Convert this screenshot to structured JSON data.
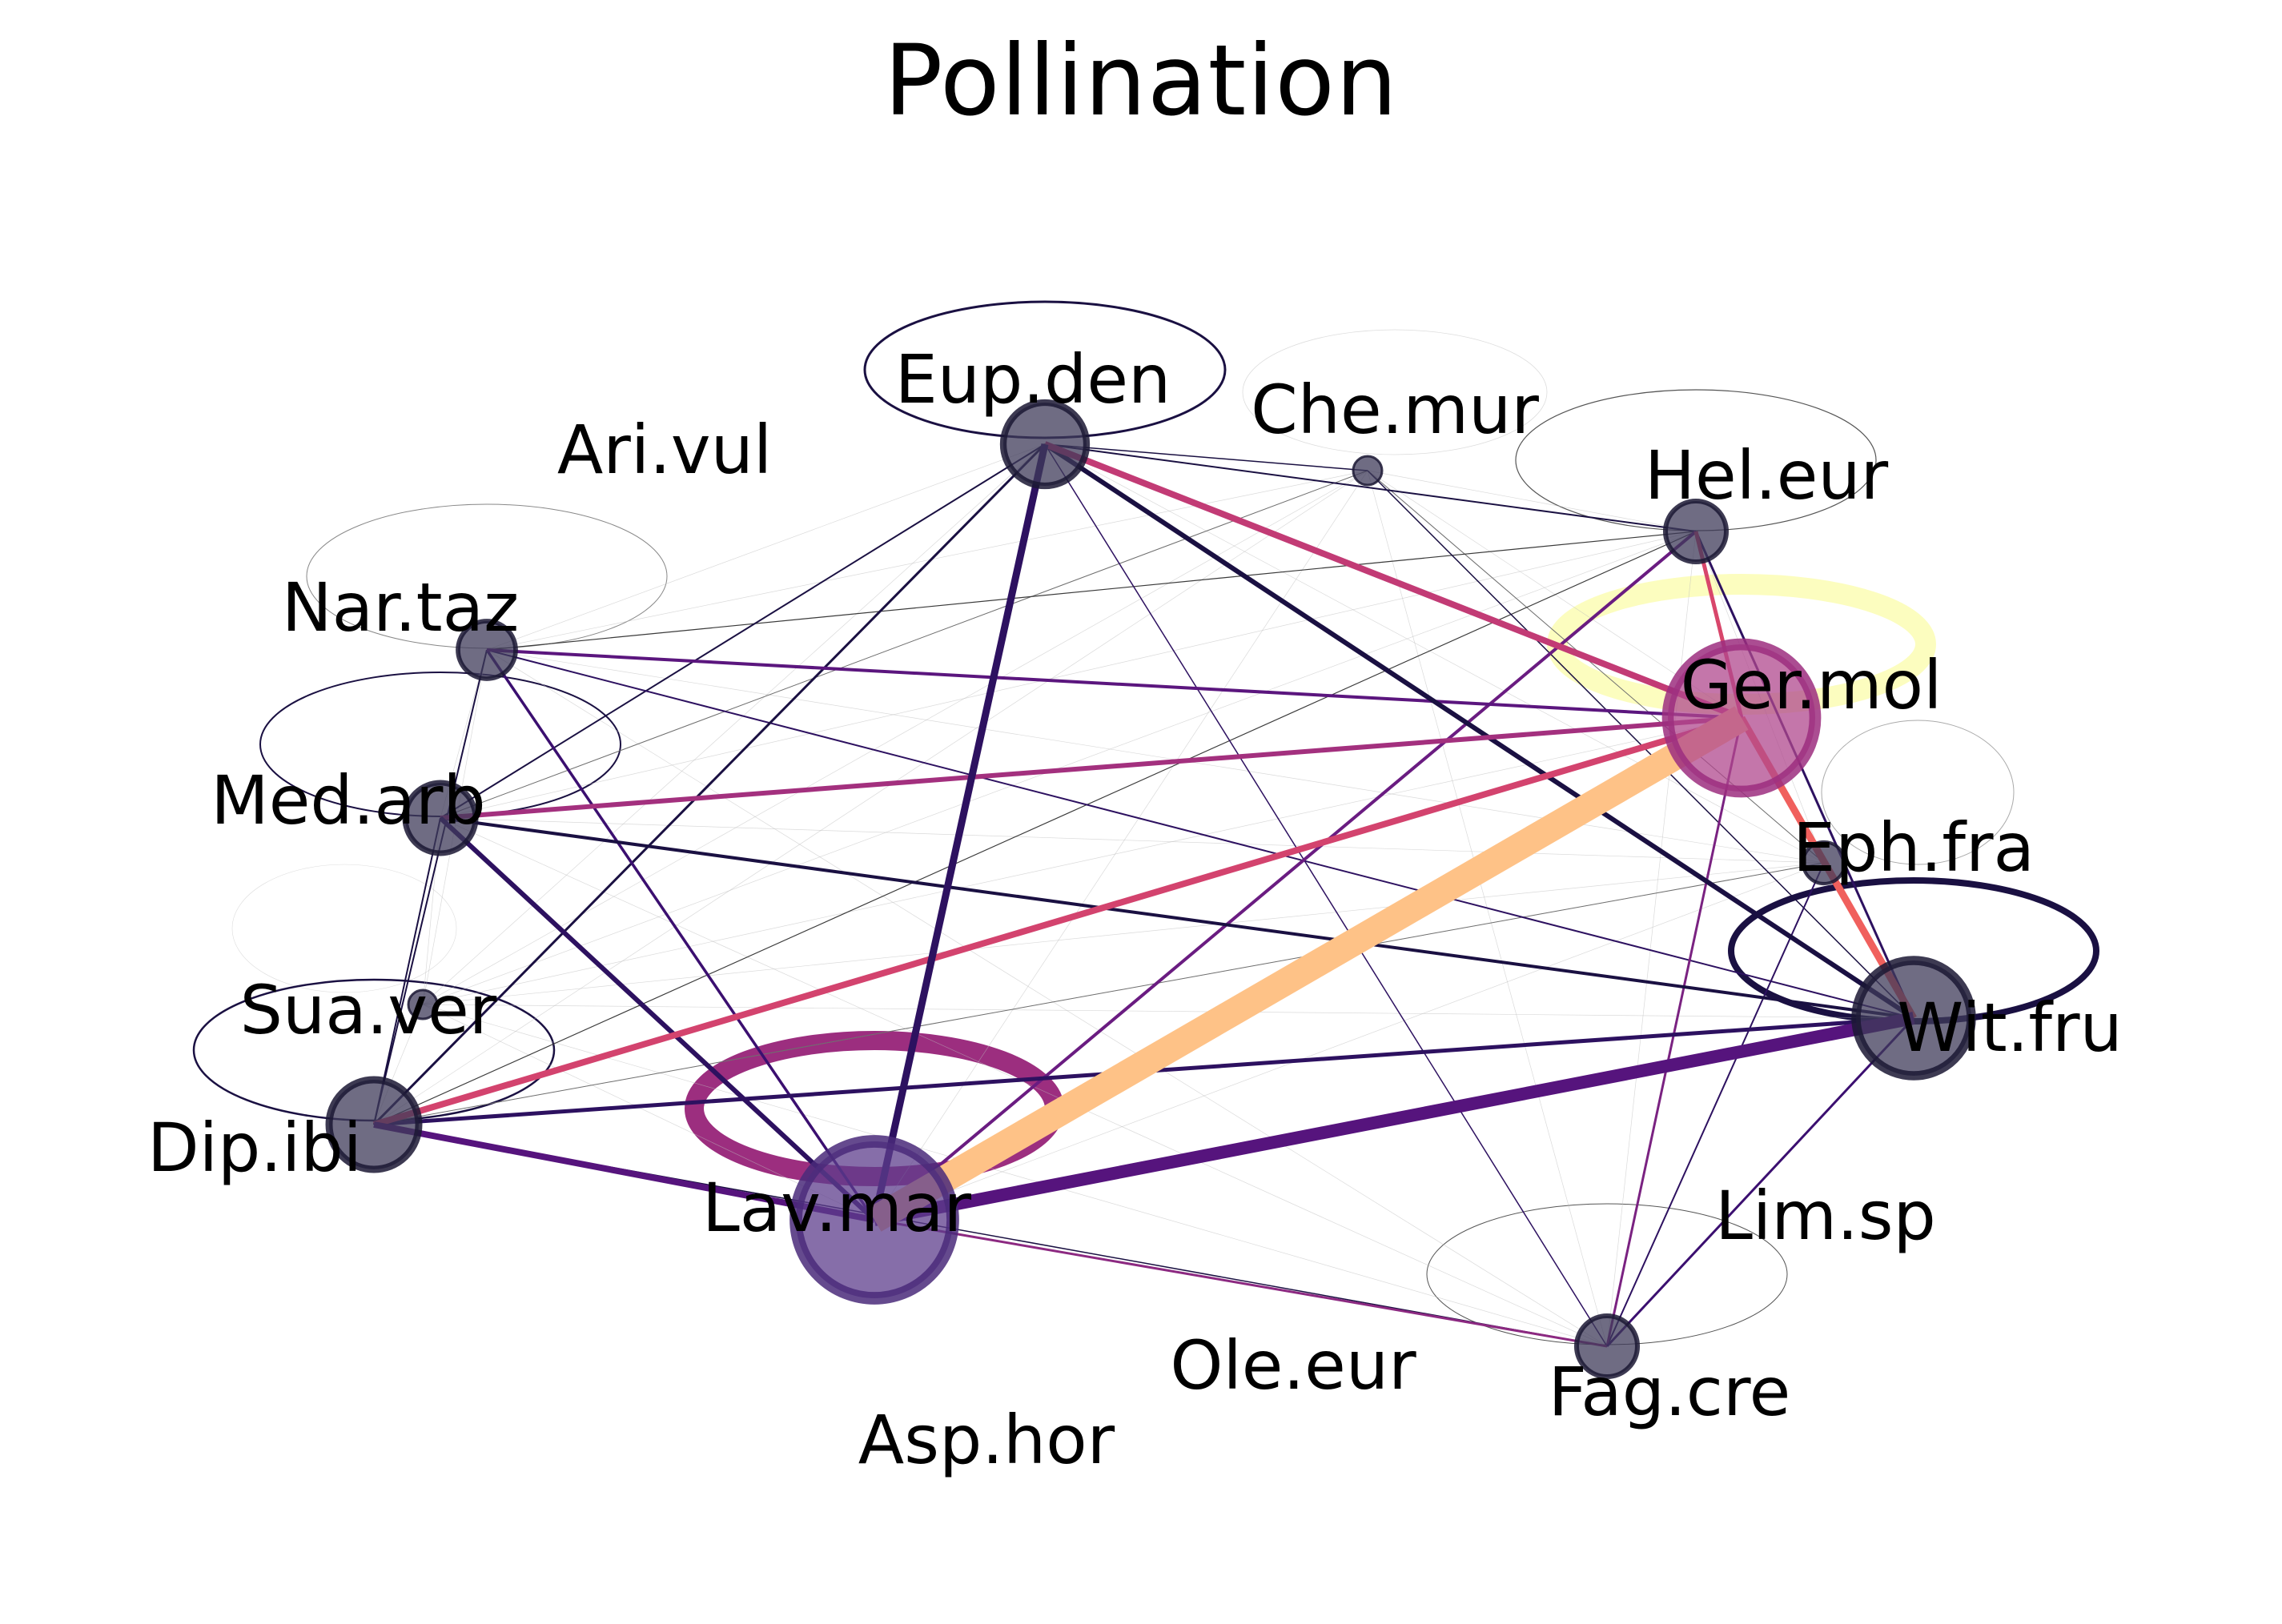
{
  "title": "Pollination",
  "colors": {
    "node_fill": "#3f3b5a",
    "node_stroke": "#1b1734",
    "ger_mol_fill": "#b0488e",
    "lav_mar_fill": "#5e3d8c"
  },
  "nodes": [
    {
      "id": "Eup.den",
      "label": "Eup.den"
    },
    {
      "id": "Che.mur",
      "label": "Che.mur"
    },
    {
      "id": "Hel.eur",
      "label": "Hel.eur"
    },
    {
      "id": "Ari.vul",
      "label": "Ari.vul"
    },
    {
      "id": "Nar.taz",
      "label": "Nar.taz"
    },
    {
      "id": "Ger.mol",
      "label": "Ger.mol"
    },
    {
      "id": "Med.arb",
      "label": "Med.arb"
    },
    {
      "id": "Eph.fra",
      "label": "Eph.fra"
    },
    {
      "id": "Sua.ver",
      "label": "Sua.ver"
    },
    {
      "id": "Wit.fru",
      "label": "Wit.fru"
    },
    {
      "id": "Dip.ibi",
      "label": "Dip.ibi"
    },
    {
      "id": "Lav.mar",
      "label": "Lav.mar"
    },
    {
      "id": "Lim.sp",
      "label": "Lim.sp"
    },
    {
      "id": "Fag.cre",
      "label": "Fag.cre"
    },
    {
      "id": "Ole.eur",
      "label": "Ole.eur"
    },
    {
      "id": "Asp.hor",
      "label": "Asp.hor"
    }
  ],
  "edges": [
    {
      "source": "Eup.den",
      "target": "Lav.mar",
      "color": "#2d1160"
    },
    {
      "source": "Eup.den",
      "target": "Ger.mol",
      "color": "#c23b75"
    },
    {
      "source": "Eup.den",
      "target": "Wit.fru",
      "color": "#1a1042"
    },
    {
      "source": "Eup.den",
      "target": "Dip.ibi",
      "color": "#1a1042"
    },
    {
      "source": "Eup.den",
      "target": "Med.arb",
      "color": "#1a1042"
    },
    {
      "source": "Eup.den",
      "target": "Hel.eur",
      "color": "#1a1042"
    },
    {
      "source": "Eup.den",
      "target": "Che.mur",
      "color": "#1a1042"
    },
    {
      "source": "Eup.den",
      "target": "Fag.cre",
      "color": "#2d1160"
    },
    {
      "source": "Che.mur",
      "target": "Wit.fru",
      "color": "#1a1042"
    },
    {
      "source": "Che.mur",
      "target": "Med.arb",
      "color": "#6e6e6e"
    },
    {
      "source": "Che.mur",
      "target": "Eph.fra",
      "color": "#6e6e6e"
    },
    {
      "source": "Hel.eur",
      "target": "Lav.mar",
      "color": "#6a1c81"
    },
    {
      "source": "Hel.eur",
      "target": "Nar.taz",
      "color": "#3a3a3a"
    },
    {
      "source": "Hel.eur",
      "target": "Ger.mol",
      "color": "#d8466b"
    },
    {
      "source": "Hel.eur",
      "target": "Wit.fru",
      "color": "#2d1160"
    },
    {
      "source": "Hel.eur",
      "target": "Dip.ibi",
      "color": "#3a3a3a"
    },
    {
      "source": "Nar.taz",
      "target": "Ger.mol",
      "color": "#5b167e"
    },
    {
      "source": "Nar.taz",
      "target": "Lav.mar",
      "color": "#3b0f70"
    },
    {
      "source": "Nar.taz",
      "target": "Wit.fru",
      "color": "#2d1160"
    },
    {
      "source": "Nar.taz",
      "target": "Dip.ibi",
      "color": "#1a1042"
    },
    {
      "source": "Med.arb",
      "target": "Ger.mol",
      "color": "#a3307e"
    },
    {
      "source": "Med.arb",
      "target": "Lav.mar",
      "color": "#2d1160"
    },
    {
      "source": "Med.arb",
      "target": "Wit.fru",
      "color": "#1a1042"
    },
    {
      "source": "Med.arb",
      "target": "Dip.ibi",
      "color": "#1a1042"
    },
    {
      "source": "Ger.mol",
      "target": "Lav.mar",
      "color": "#fec287"
    },
    {
      "source": "Ger.mol",
      "target": "Dip.ibi",
      "color": "#d3436e"
    },
    {
      "source": "Ger.mol",
      "target": "Wit.fru",
      "color": "#f0605d"
    },
    {
      "source": "Ger.mol",
      "target": "Fag.cre",
      "color": "#7a2281"
    },
    {
      "source": "Lav.mar",
      "target": "Wit.fru",
      "color": "#56147d"
    },
    {
      "source": "Lav.mar",
      "target": "Dip.ibi",
      "color": "#56147d"
    },
    {
      "source": "Lav.mar",
      "target": "Fag.cre",
      "color": "#8c2981"
    },
    {
      "source": "Dip.ibi",
      "target": "Wit.fru",
      "color": "#2d1160"
    },
    {
      "source": "Dip.ibi",
      "target": "Fag.cre",
      "color": "#1a1042"
    },
    {
      "source": "Wit.fru",
      "target": "Fag.cre",
      "color": "#3b0f70"
    },
    {
      "source": "Eph.fra",
      "target": "Fag.cre",
      "color": "#2d1160"
    },
    {
      "source": "Eph.fra",
      "target": "Dip.ibi",
      "color": "#6e6e6e"
    }
  ],
  "self_loops": [
    {
      "node": "Eup.den",
      "color": "#1a1042"
    },
    {
      "node": "Che.mur",
      "color": "#dddddd"
    },
    {
      "node": "Hel.eur",
      "color": "#555555"
    },
    {
      "node": "Ger.mol",
      "color": "#fcfdbf"
    },
    {
      "node": "Nar.taz",
      "color": "#888888"
    },
    {
      "node": "Med.arb",
      "color": "#1a1042"
    },
    {
      "node": "Eph.fra",
      "color": "#aaaaaa"
    },
    {
      "node": "Wit.fru",
      "color": "#1a1042"
    },
    {
      "node": "Sua.ver",
      "color": "#dddddd"
    },
    {
      "node": "Dip.ibi",
      "color": "#1a1042"
    },
    {
      "node": "Lav.mar",
      "color": "#9c2e7f"
    },
    {
      "node": "Fag.cre",
      "color": "#555555"
    }
  ]
}
